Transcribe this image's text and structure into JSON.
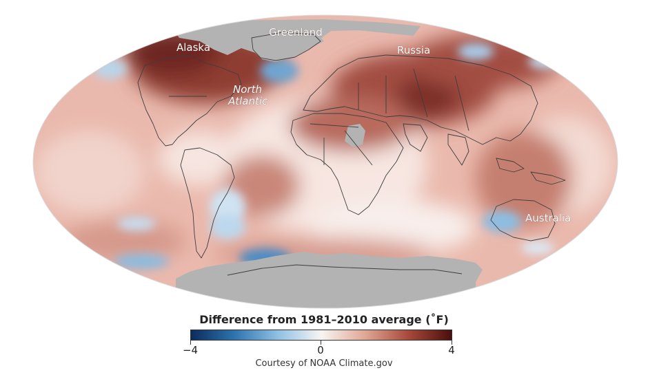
{
  "map": {
    "labels": {
      "alaska": "Alaska",
      "greenland": "Greenland",
      "russia": "Russia",
      "north_atlantic_line1": "North",
      "north_atlantic_line2": "Atlantic",
      "australia": "Australia"
    }
  },
  "legend": {
    "title": "Difference from 1981–2010 average (˚F)",
    "min_label": "−4",
    "mid_label": "0",
    "max_label": "4",
    "colors": [
      "#0b2c5c",
      "#2f73ae",
      "#8fc0e3",
      "#f8f5f3",
      "#e0a896",
      "#a84a3c",
      "#4a0f0c"
    ]
  },
  "credit": "Courtesy of NOAA Climate.gov"
}
